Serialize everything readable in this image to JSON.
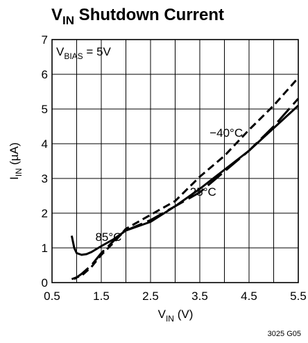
{
  "chart_data": {
    "type": "line",
    "title": {
      "main": "V",
      "sub": "IN",
      "rest": " Shutdown Current"
    },
    "xlabel": {
      "main": "V",
      "sub": "IN",
      "rest": " (V)"
    },
    "ylabel": {
      "main": "I",
      "sub": "IN",
      "rest": " (µA)"
    },
    "xlim": [
      0.5,
      5.5
    ],
    "ylim": [
      0,
      7
    ],
    "xticks": [
      "0.5",
      "1.5",
      "2.5",
      "3.5",
      "4.5",
      "5.5"
    ],
    "xtick_values": [
      0.5,
      1.5,
      2.5,
      3.5,
      4.5,
      5.5
    ],
    "yticks": [
      "0",
      "1",
      "2",
      "3",
      "4",
      "5",
      "6",
      "7"
    ],
    "ytick_values": [
      0,
      1,
      2,
      3,
      4,
      5,
      6,
      7
    ],
    "grid": true,
    "condition": {
      "main": "V",
      "sub": "BIAS",
      "rest": " = 5V"
    },
    "figure_code": "3025 G05",
    "series": [
      {
        "label": "85°C",
        "dash": "solid",
        "label_at": [
          1.38,
          1.2
        ],
        "x": [
          0.9,
          0.95,
          1.0,
          1.1,
          1.2,
          1.3,
          1.5,
          1.75,
          2.0,
          2.5,
          3.0,
          3.5,
          4.0,
          4.5,
          5.0,
          5.5
        ],
        "y": [
          1.35,
          1.0,
          0.85,
          0.8,
          0.82,
          0.88,
          1.05,
          1.25,
          1.5,
          1.75,
          2.2,
          2.7,
          3.25,
          3.8,
          4.45,
          5.1
        ]
      },
      {
        "label": "25°C",
        "dash": "longdash",
        "label_at": [
          3.3,
          2.5
        ],
        "x": [
          0.95,
          1.1,
          1.3,
          1.5,
          1.75,
          2.0,
          2.5,
          3.0,
          3.5,
          4.0,
          4.5,
          5.0,
          5.5
        ],
        "y": [
          0.1,
          0.25,
          0.5,
          0.85,
          1.2,
          1.5,
          1.8,
          2.2,
          2.6,
          3.2,
          3.8,
          4.5,
          5.3
        ]
      },
      {
        "label": "−40°C",
        "dash": "shortdash",
        "label_at": [
          3.7,
          4.2
        ],
        "x": [
          0.9,
          1.1,
          1.3,
          1.5,
          1.75,
          2.0,
          2.5,
          3.0,
          3.5,
          4.0,
          4.5,
          5.0,
          5.5
        ],
        "y": [
          0.1,
          0.2,
          0.45,
          0.8,
          1.15,
          1.55,
          1.95,
          2.35,
          3.05,
          3.65,
          4.4,
          5.1,
          5.9
        ]
      }
    ]
  }
}
